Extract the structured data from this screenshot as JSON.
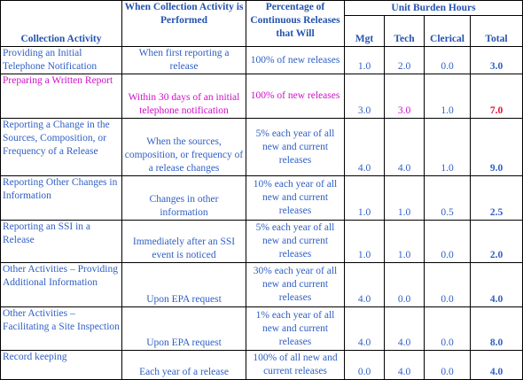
{
  "header": {
    "group": "Unit Burden Hours",
    "columns": [
      "Collection Activity",
      "When Collection Activity is Performed",
      "Percentage of Continuous Releases that Will",
      "Mgt",
      "Tech",
      "Clerical",
      "Total"
    ]
  },
  "rows": [
    [
      "Providing an Initial Telephone Notification",
      "When first reporting a release",
      "100% of new releases",
      "1.0",
      "2.0",
      "0.0",
      "3.0"
    ],
    [
      "Preparing a Written Report",
      "Within 30 days of an initial telephone notification",
      "100% of new releases",
      "3.0",
      "3.0",
      "1.0",
      "7.0"
    ],
    [
      "Reporting a Change in the Sources, Composition, or Frequency of a Release",
      "When the sources, composition, or frequency of a release changes",
      "5% each year of all new and current releases",
      "4.0",
      "4.0",
      "1.0",
      "9.0"
    ],
    [
      "Reporting Other Changes in Information",
      "Changes in other information",
      "10% each year of all new and current releases",
      "1.0",
      "1.0",
      "0.5",
      "2.5"
    ],
    [
      "Reporting an SSI in a Release",
      "Immediately after an SSI event is noticed",
      "5% each year of all new and current releases",
      "1.0",
      "1.0",
      "0.0",
      "2.0"
    ],
    [
      "Other Activities – Providing Additional Information",
      "Upon EPA request",
      "30% each year of all new and current releases",
      "4.0",
      "0.0",
      "0.0",
      "4.0"
    ],
    [
      "Other Activities – Facilitating a Site Inspection",
      "Upon EPA request",
      "1% each year of all new and current releases",
      "4.0",
      "4.0",
      "0.0",
      "8.0"
    ],
    [
      "Record keeping",
      "Each year of a release",
      "100% of all new and current releases",
      "0.0",
      "4.0",
      "0.0",
      "4.0"
    ]
  ]
}
